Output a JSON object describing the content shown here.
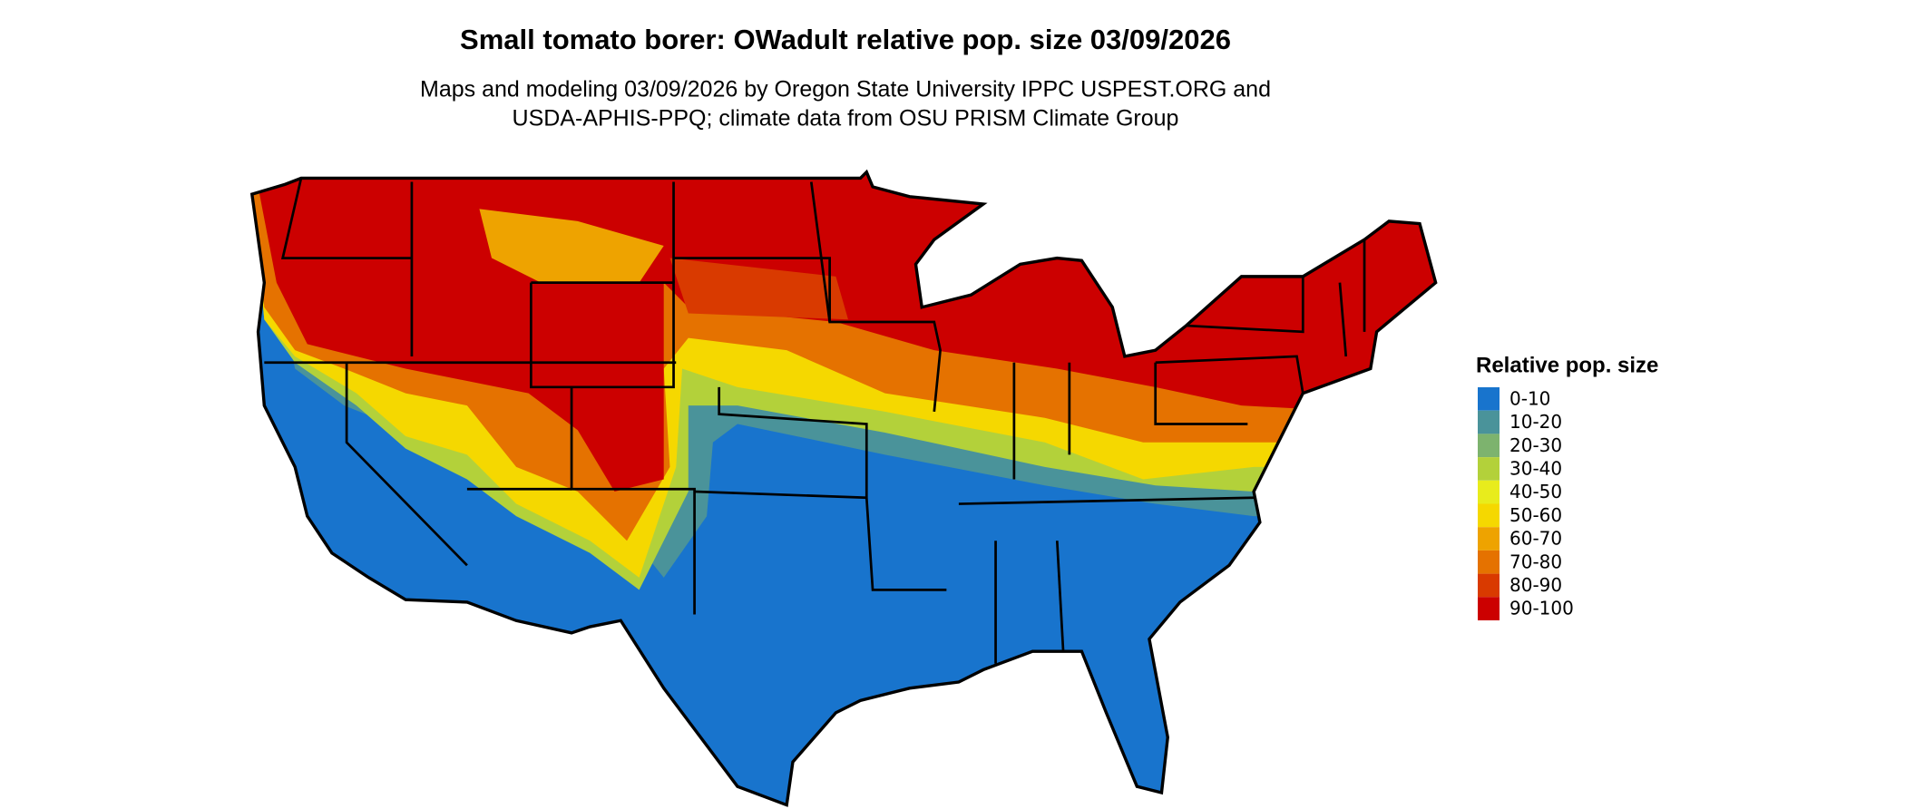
{
  "title": "Small tomato borer: OWadult relative pop. size 03/09/2026",
  "subtitle": [
    "Maps and modeling 03/09/2026 by Oregon State University IPPC USPEST.ORG and",
    "USDA-APHIS-PPQ; climate data from OSU PRISM Climate Group"
  ],
  "legend": {
    "title": "Relative pop. size",
    "items": [
      {
        "label": "0-10",
        "color": "#1874cd"
      },
      {
        "label": "10-20",
        "color": "#4a939a"
      },
      {
        "label": "20-30",
        "color": "#7db36e"
      },
      {
        "label": "30-40",
        "color": "#b3d13a"
      },
      {
        "label": "40-50",
        "color": "#e8ec1c"
      },
      {
        "label": "50-60",
        "color": "#f5d800"
      },
      {
        "label": "60-70",
        "color": "#eea300"
      },
      {
        "label": "70-80",
        "color": "#e57200"
      },
      {
        "label": "80-90",
        "color": "#d93a00"
      },
      {
        "label": "90-100",
        "color": "#cc0000"
      }
    ]
  }
}
